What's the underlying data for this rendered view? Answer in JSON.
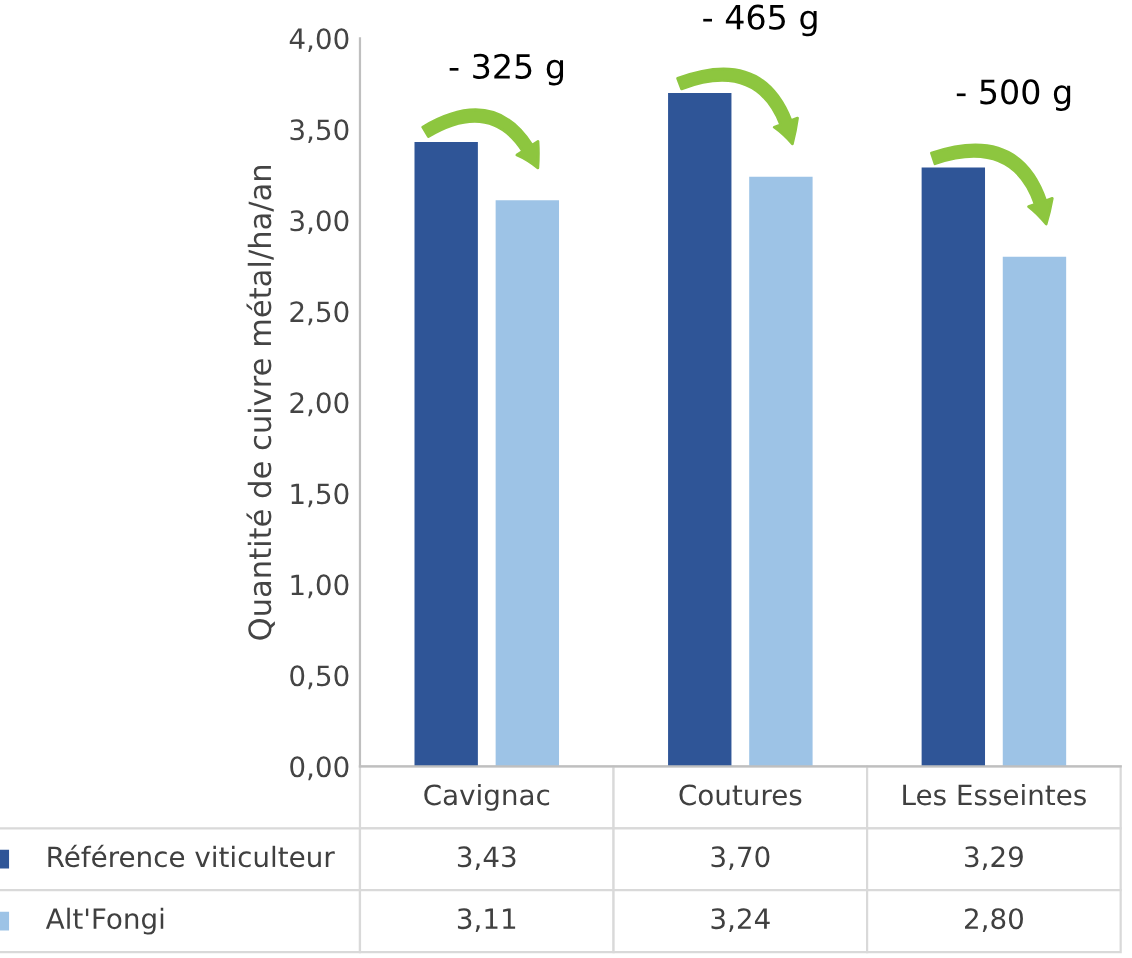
{
  "chart_data": {
    "type": "bar",
    "ylabel": "Quantité de cuivre métal/ha/an",
    "categories": [
      "Cavignac",
      "Coutures",
      "Les Esseintes"
    ],
    "series": [
      {
        "name": "Référence viticulteur",
        "color": "#2f5597",
        "values": [
          3.43,
          3.7,
          3.29
        ],
        "value_labels": [
          "3,43",
          "3,70",
          "3,29"
        ]
      },
      {
        "name": "Alt'Fongi",
        "color": "#9dc3e6",
        "values": [
          3.11,
          3.24,
          2.8
        ],
        "value_labels": [
          "3,11",
          "3,24",
          "2,80"
        ]
      }
    ],
    "ylim": [
      0,
      4
    ],
    "yticks": [
      {
        "value": 0,
        "label": "0,00"
      },
      {
        "value": 0.5,
        "label": "0,50"
      },
      {
        "value": 1,
        "label": "1,00"
      },
      {
        "value": 1.5,
        "label": "1,50"
      },
      {
        "value": 2,
        "label": "2,00"
      },
      {
        "value": 2.5,
        "label": "2,50"
      },
      {
        "value": 3,
        "label": "3,00"
      },
      {
        "value": 3.5,
        "label": "3,50"
      },
      {
        "value": 4,
        "label": "4,00"
      }
    ],
    "grid": false,
    "legend": "bottom",
    "annotations": [
      "- 325 g",
      "- 465 g",
      "- 500 g"
    ]
  }
}
